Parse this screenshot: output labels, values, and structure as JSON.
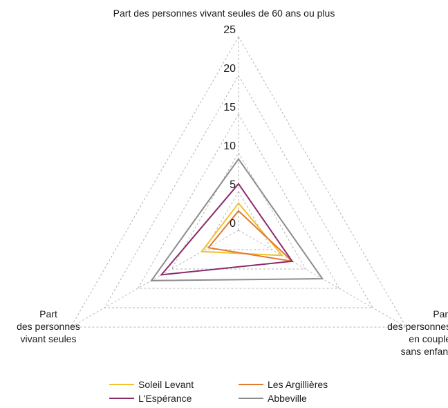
{
  "chart_data": {
    "type": "radar",
    "axes": [
      "Part des personnes vivant seules de 60 ans ou plus",
      "Part\ndes personnes\nen couple\nsans enfant",
      "Part\ndes personnes\nvivant seules"
    ],
    "rlim": [
      0,
      25
    ],
    "ticks": [
      "0",
      "5",
      "10",
      "15",
      "20",
      "25"
    ],
    "tick_values": [
      0,
      5,
      10,
      15,
      20,
      25
    ],
    "grid": true,
    "legend_position": "bottom",
    "series": [
      {
        "name": "Soleil Levant",
        "color": "#f2c12e",
        "values": [
          3.5,
          6.5,
          5.5
        ]
      },
      {
        "name": "Les Argillières",
        "color": "#e07a2e",
        "values": [
          2.5,
          8.0,
          4.5
        ]
      },
      {
        "name": "L'Espérance",
        "color": "#8b2a6b",
        "values": [
          6.0,
          8.0,
          11.5
        ]
      },
      {
        "name": "Abbeville",
        "color": "#8c8c8c",
        "values": [
          9.2,
          12.5,
          13.0
        ]
      }
    ]
  }
}
